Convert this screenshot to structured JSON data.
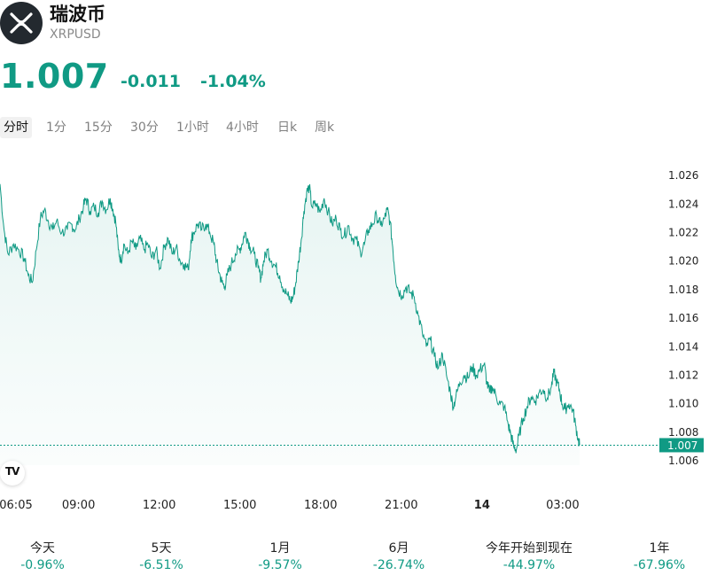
{
  "header": {
    "coin_name": "瑞波币",
    "symbol": "XRPUSD",
    "logo_icon": "xrp-logo-icon"
  },
  "quote": {
    "price": "1.007",
    "change": "-0.011",
    "change_pct": "-1.04%"
  },
  "colors": {
    "accent": "#109a84",
    "fill": "#e9f6f3",
    "grid": "#eeeeee"
  },
  "tabs": [
    {
      "label": "分时",
      "active": true
    },
    {
      "label": "1分",
      "active": false
    },
    {
      "label": "15分",
      "active": false
    },
    {
      "label": "30分",
      "active": false
    },
    {
      "label": "1小时",
      "active": false
    },
    {
      "label": "4小时",
      "active": false
    },
    {
      "label": "日k",
      "active": false
    },
    {
      "label": "周k",
      "active": false
    }
  ],
  "chart_data": {
    "type": "area",
    "y_ticks": [
      "1.026",
      "1.024",
      "1.022",
      "1.020",
      "1.018",
      "1.016",
      "1.014",
      "1.012",
      "1.010",
      "1.008",
      "1.006"
    ],
    "ylim": [
      1.0057,
      1.0265
    ],
    "x_ticks": [
      {
        "label": "06:05",
        "hour": 0,
        "bold": false
      },
      {
        "label": "09:00",
        "hour": 2.92,
        "bold": false
      },
      {
        "label": "12:00",
        "hour": 5.92,
        "bold": false
      },
      {
        "label": "15:00",
        "hour": 8.92,
        "bold": false
      },
      {
        "label": "18:00",
        "hour": 11.92,
        "bold": false
      },
      {
        "label": "21:00",
        "hour": 14.92,
        "bold": false
      },
      {
        "label": "14",
        "hour": 17.92,
        "bold": true
      },
      {
        "label": "03:00",
        "hour": 20.92,
        "bold": false
      }
    ],
    "xlim": [
      0,
      24.45
    ],
    "last_price_label": "1.007",
    "last_price": 1.0071,
    "series": [
      {
        "values": [
          [
            0.0,
            1.0254
          ],
          [
            0.15,
            1.0222
          ],
          [
            0.3,
            1.0205
          ],
          [
            0.5,
            1.0212
          ],
          [
            0.7,
            1.0208
          ],
          [
            0.9,
            1.0202
          ],
          [
            1.05,
            1.019
          ],
          [
            1.2,
            1.0185
          ],
          [
            1.35,
            1.0208
          ],
          [
            1.5,
            1.023
          ],
          [
            1.65,
            1.0236
          ],
          [
            1.8,
            1.0228
          ],
          [
            1.95,
            1.0222
          ],
          [
            2.1,
            1.0228
          ],
          [
            2.3,
            1.022
          ],
          [
            2.5,
            1.0222
          ],
          [
            2.65,
            1.0226
          ],
          [
            2.8,
            1.0222
          ],
          [
            2.95,
            1.023
          ],
          [
            3.1,
            1.0238
          ],
          [
            3.2,
            1.0244
          ],
          [
            3.35,
            1.0235
          ],
          [
            3.5,
            1.0238
          ],
          [
            3.65,
            1.0234
          ],
          [
            3.8,
            1.0242
          ],
          [
            3.95,
            1.0236
          ],
          [
            4.1,
            1.0244
          ],
          [
            4.2,
            1.0236
          ],
          [
            4.3,
            1.0228
          ],
          [
            4.4,
            1.0208
          ],
          [
            4.5,
            1.02
          ],
          [
            4.6,
            1.0212
          ],
          [
            4.75,
            1.0205
          ],
          [
            4.9,
            1.0214
          ],
          [
            5.05,
            1.0208
          ],
          [
            5.2,
            1.0216
          ],
          [
            5.35,
            1.0208
          ],
          [
            5.5,
            1.0212
          ],
          [
            5.65,
            1.0202
          ],
          [
            5.8,
            1.0208
          ],
          [
            5.95,
            1.0195
          ],
          [
            6.1,
            1.021
          ],
          [
            6.25,
            1.0216
          ],
          [
            6.4,
            1.0205
          ],
          [
            6.55,
            1.021
          ],
          [
            6.7,
            1.02
          ],
          [
            6.85,
            1.0198
          ],
          [
            7.0,
            1.0194
          ],
          [
            7.1,
            1.0215
          ],
          [
            7.2,
            1.022
          ],
          [
            7.35,
            1.0226
          ],
          [
            7.5,
            1.0222
          ],
          [
            7.65,
            1.0226
          ],
          [
            7.8,
            1.022
          ],
          [
            7.95,
            1.0212
          ],
          [
            8.05,
            1.02
          ],
          [
            8.15,
            1.0192
          ],
          [
            8.25,
            1.0185
          ],
          [
            8.35,
            1.0182
          ],
          [
            8.45,
            1.019
          ],
          [
            8.6,
            1.0198
          ],
          [
            8.75,
            1.0205
          ],
          [
            8.9,
            1.0208
          ],
          [
            9.0,
            1.0212
          ],
          [
            9.1,
            1.022
          ],
          [
            9.2,
            1.0216
          ],
          [
            9.3,
            1.021
          ],
          [
            9.45,
            1.0205
          ],
          [
            9.6,
            1.0195
          ],
          [
            9.7,
            1.0188
          ],
          [
            9.8,
            1.02
          ],
          [
            9.95,
            1.0208
          ],
          [
            10.1,
            1.02
          ],
          [
            10.25,
            1.0196
          ],
          [
            10.4,
            1.019
          ],
          [
            10.55,
            1.018
          ],
          [
            10.7,
            1.0176
          ],
          [
            10.8,
            1.0172
          ],
          [
            10.9,
            1.0175
          ],
          [
            11.0,
            1.0185
          ],
          [
            11.1,
            1.02
          ],
          [
            11.2,
            1.0215
          ],
          [
            11.3,
            1.0235
          ],
          [
            11.4,
            1.0248
          ],
          [
            11.5,
            1.0252
          ],
          [
            11.6,
            1.0238
          ],
          [
            11.75,
            1.024
          ],
          [
            11.9,
            1.0234
          ],
          [
            12.05,
            1.0244
          ],
          [
            12.2,
            1.0235
          ],
          [
            12.35,
            1.0226
          ],
          [
            12.5,
            1.023
          ],
          [
            12.65,
            1.0222
          ],
          [
            12.8,
            1.0218
          ],
          [
            12.95,
            1.0225
          ],
          [
            13.1,
            1.0216
          ],
          [
            13.25,
            1.0215
          ],
          [
            13.4,
            1.0206
          ],
          [
            13.55,
            1.0212
          ],
          [
            13.7,
            1.0222
          ],
          [
            13.85,
            1.0226
          ],
          [
            14.0,
            1.0232
          ],
          [
            14.15,
            1.0225
          ],
          [
            14.3,
            1.023
          ],
          [
            14.4,
            1.0236
          ],
          [
            14.5,
            1.0228
          ],
          [
            14.6,
            1.021
          ],
          [
            14.7,
            1.019
          ],
          [
            14.8,
            1.018
          ],
          [
            14.95,
            1.0176
          ],
          [
            15.1,
            1.0182
          ],
          [
            15.25,
            1.0178
          ],
          [
            15.4,
            1.0175
          ],
          [
            15.55,
            1.0162
          ],
          [
            15.7,
            1.015
          ],
          [
            15.85,
            1.014
          ],
          [
            16.0,
            1.0145
          ],
          [
            16.15,
            1.0133
          ],
          [
            16.3,
            1.0125
          ],
          [
            16.45,
            1.0135
          ],
          [
            16.6,
            1.012
          ],
          [
            16.75,
            1.0108
          ],
          [
            16.85,
            1.0098
          ],
          [
            16.95,
            1.0105
          ],
          [
            17.1,
            1.0115
          ],
          [
            17.25,
            1.012
          ],
          [
            17.4,
            1.0118
          ],
          [
            17.55,
            1.0126
          ],
          [
            17.7,
            1.012
          ],
          [
            17.85,
            1.0124
          ],
          [
            18.0,
            1.0128
          ],
          [
            18.1,
            1.0115
          ],
          [
            18.2,
            1.0108
          ],
          [
            18.3,
            1.0112
          ],
          [
            18.45,
            1.0105
          ],
          [
            18.6,
            1.01
          ],
          [
            18.75,
            1.0098
          ],
          [
            18.9,
            1.0085
          ],
          [
            19.0,
            1.0078
          ],
          [
            19.1,
            1.007
          ],
          [
            19.2,
            1.0068
          ],
          [
            19.3,
            1.0078
          ],
          [
            19.45,
            1.009
          ],
          [
            19.6,
            1.0098
          ],
          [
            19.75,
            1.0105
          ],
          [
            19.9,
            1.0102
          ],
          [
            20.05,
            1.0108
          ],
          [
            20.2,
            1.011
          ],
          [
            20.35,
            1.0104
          ],
          [
            20.5,
            1.0112
          ],
          [
            20.6,
            1.0122
          ],
          [
            20.7,
            1.0115
          ],
          [
            20.8,
            1.011
          ],
          [
            20.9,
            1.01
          ],
          [
            21.0,
            1.0096
          ],
          [
            21.15,
            1.01
          ],
          [
            21.3,
            1.0096
          ],
          [
            21.4,
            1.0085
          ],
          [
            21.5,
            1.0075
          ],
          [
            21.55,
            1.0071
          ]
        ]
      }
    ]
  },
  "performance": [
    {
      "label": "今天",
      "value": "-0.96%"
    },
    {
      "label": "5天",
      "value": "-6.51%"
    },
    {
      "label": "1月",
      "value": "-9.57%"
    },
    {
      "label": "6月",
      "value": "-26.74%"
    },
    {
      "label": "今年开始到现在",
      "value": "-44.97%"
    },
    {
      "label": "1年",
      "value": "-67.96%"
    }
  ],
  "badge": {
    "text": "TV"
  }
}
